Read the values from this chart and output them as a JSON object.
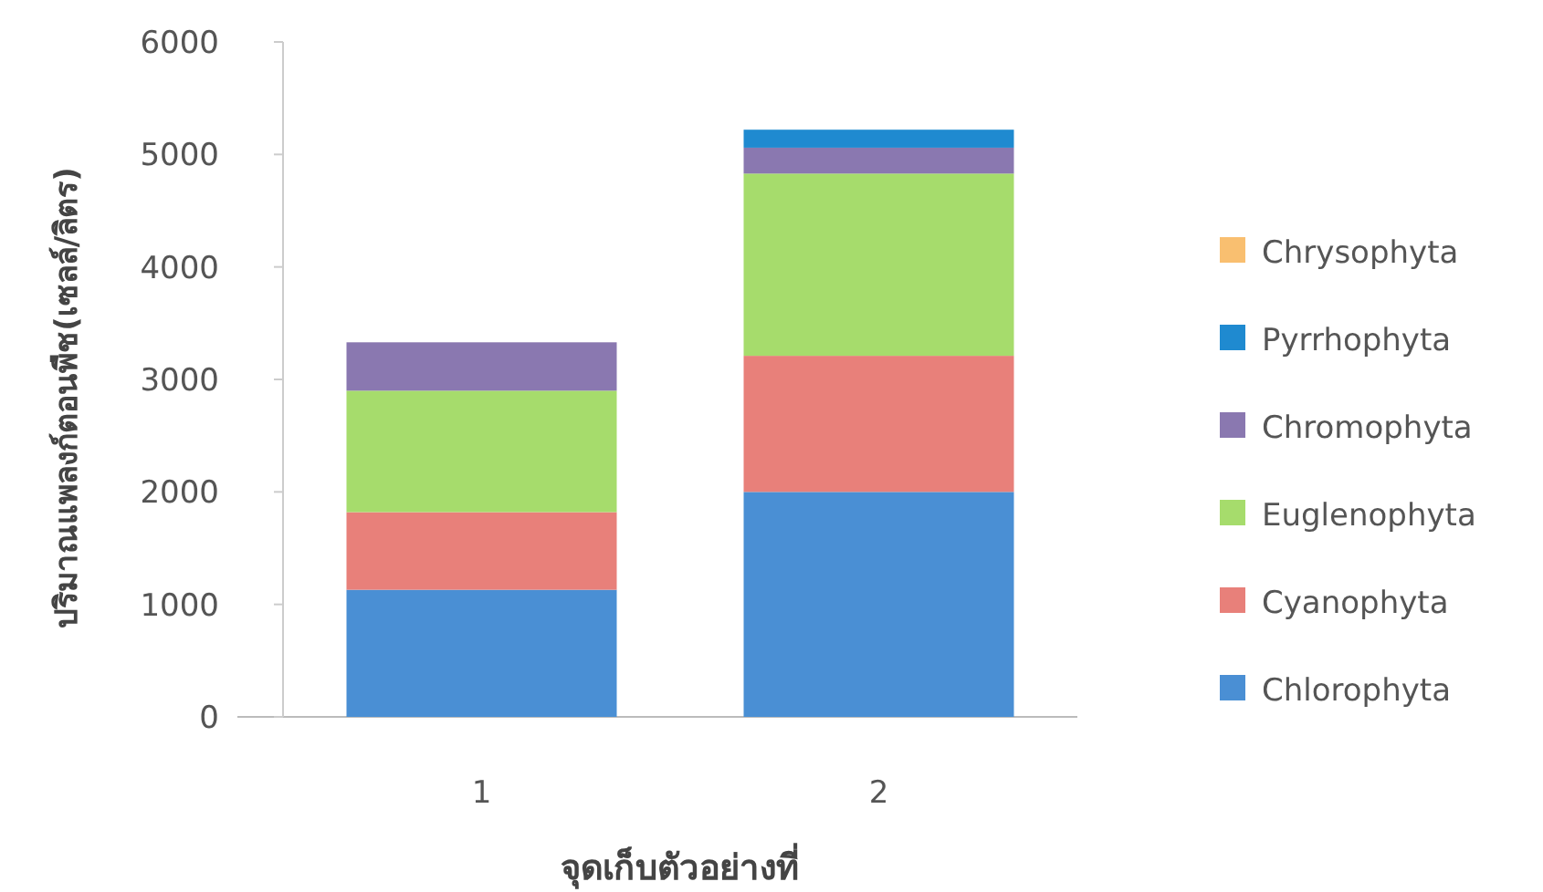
{
  "chart_data": {
    "type": "bar",
    "stacked": true,
    "xlabel": "จุดเก็บตัวอย่างที่",
    "ylabel": "ปริมาณแพลงก์ตอนพืช(เซลล์/ลิตร)",
    "categories": [
      "1",
      "2"
    ],
    "series": [
      {
        "name": "Chlorophyta",
        "color": "#4a8fd4",
        "values": [
          1130,
          2000
        ]
      },
      {
        "name": "Cyanophyta",
        "color": "#e8807a",
        "values": [
          690,
          1210
        ]
      },
      {
        "name": "Euglenophyta",
        "color": "#a6dc6c",
        "values": [
          1080,
          1620
        ]
      },
      {
        "name": "Chromophyta",
        "color": "#8a78b0",
        "values": [
          430,
          230
        ]
      },
      {
        "name": "Pyrrhophyta",
        "color": "#1f8ad0",
        "values": [
          0,
          160
        ]
      },
      {
        "name": "Chrysophyta",
        "color": "#f9bf70",
        "values": [
          0,
          0
        ]
      }
    ],
    "ylim": [
      0,
      6000
    ],
    "yticks": [
      0,
      1000,
      2000,
      3000,
      4000,
      5000,
      6000
    ],
    "grid": false,
    "legend": "right"
  }
}
